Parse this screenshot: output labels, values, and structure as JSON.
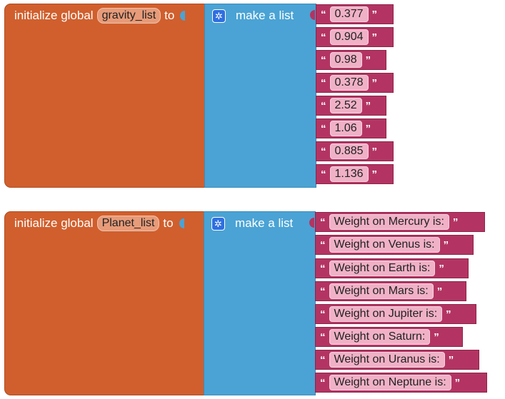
{
  "blocks": [
    {
      "prefix": "initialize global",
      "var_name": "gravity_list",
      "to": "to",
      "list_label": "make a list",
      "items": [
        "0.377",
        "0.904",
        "0.98",
        "0.378",
        "2.52",
        "1.06",
        "0.885",
        "1.136"
      ]
    },
    {
      "prefix": "initialize global",
      "var_name": "Planet_list",
      "to": "to",
      "list_label": "make a list",
      "items": [
        "Weight on Mercury is: ",
        "Weight on Venus is: ",
        "Weight on Earth is: ",
        "Weight on Mars is: ",
        "Weight on Jupiter is: ",
        "Weight on Saturn: ",
        "Weight on Uranus is: ",
        "Weight on Neptune is: "
      ]
    }
  ],
  "quote_open": "“",
  "quote_close": "”",
  "icons": {
    "mutator": "gear-icon"
  },
  "colors": {
    "init": "#d05f2d",
    "list": "#4aa3d4",
    "text": "#b33462",
    "gear": "#2f6fe0"
  }
}
